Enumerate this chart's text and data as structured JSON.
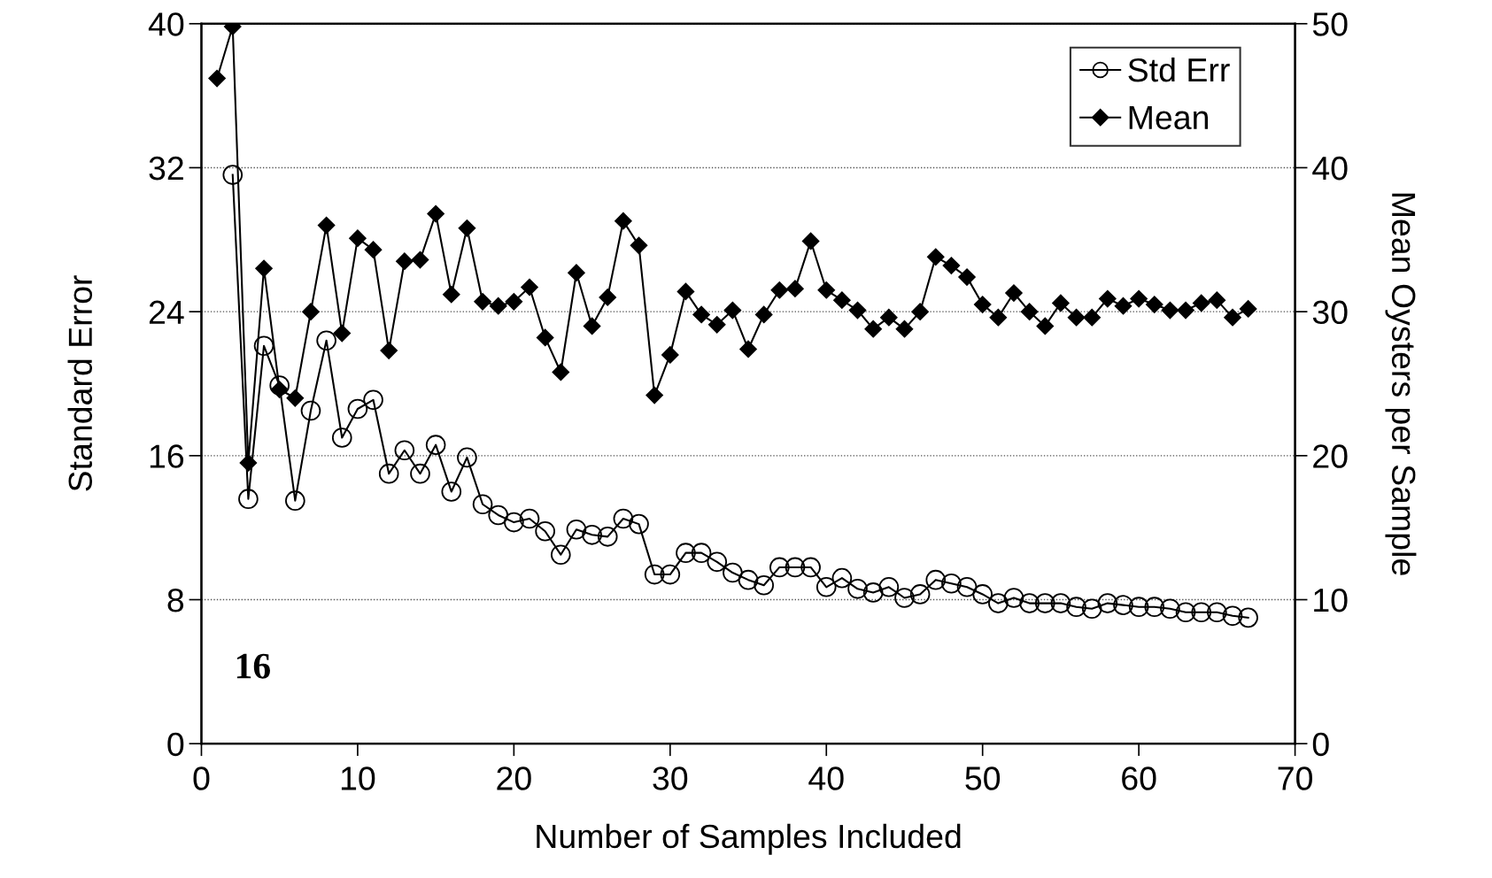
{
  "chart_data": {
    "type": "line",
    "xlabel": "Number of Samples Included",
    "ylabel": "Standard Error",
    "y2label": "Mean Oysters per Sample",
    "xlim": [
      0,
      70
    ],
    "xticks": [
      0,
      10,
      20,
      30,
      40,
      50,
      60,
      70
    ],
    "ylim": [
      0,
      40
    ],
    "yticks": [
      0,
      8,
      16,
      24,
      32,
      40
    ],
    "y2lim": [
      0,
      50
    ],
    "y2ticks": [
      0,
      10,
      20,
      30,
      40,
      50
    ],
    "grid": "y",
    "legend": "top right",
    "line_style": "solid",
    "annotations": [
      "16"
    ],
    "series": [
      {
        "name": "Std Err",
        "color": "#000000",
        "marker": "circle",
        "x": [
          2,
          3,
          4,
          5,
          6,
          7,
          8,
          9,
          10,
          11,
          12,
          13,
          14,
          15,
          16,
          17,
          18,
          19,
          20,
          21,
          22,
          23,
          24,
          25,
          26,
          27,
          28,
          29,
          30,
          31,
          32,
          33,
          34,
          35,
          36,
          37,
          38,
          39,
          40,
          41,
          42,
          43,
          44,
          45,
          46,
          47,
          48,
          49,
          50,
          51,
          52,
          53,
          54,
          55,
          56,
          57,
          58,
          59,
          60,
          61,
          62,
          63,
          64,
          65,
          66,
          67
        ],
        "values": [
          31.6,
          13.6,
          22.1,
          19.9,
          13.5,
          18.5,
          22.4,
          17.0,
          18.6,
          19.1,
          15.0,
          16.3,
          15.0,
          16.6,
          14.0,
          15.9,
          13.3,
          12.7,
          12.3,
          12.5,
          11.8,
          10.5,
          11.9,
          11.6,
          11.5,
          12.5,
          12.2,
          9.4,
          9.4,
          10.6,
          10.6,
          10.1,
          9.5,
          9.1,
          8.8,
          9.8,
          9.8,
          9.8,
          8.7,
          9.2,
          8.6,
          8.4,
          8.7,
          8.1,
          8.3,
          9.1,
          8.9,
          8.7,
          8.3,
          7.8,
          8.1,
          7.8,
          7.8,
          7.8,
          7.6,
          7.5,
          7.8,
          7.7,
          7.6,
          7.6,
          7.5,
          7.3,
          7.3,
          7.3,
          7.1,
          7.0
        ]
      },
      {
        "name": "Mean",
        "color": "#000000",
        "marker": "diamond",
        "axis": "y2",
        "x": [
          1,
          2,
          3,
          4,
          5,
          6,
          7,
          8,
          9,
          10,
          11,
          12,
          13,
          14,
          15,
          16,
          17,
          18,
          19,
          20,
          21,
          22,
          23,
          24,
          25,
          26,
          27,
          28,
          29,
          30,
          31,
          32,
          33,
          34,
          35,
          36,
          37,
          38,
          39,
          40,
          41,
          42,
          43,
          44,
          45,
          46,
          47,
          48,
          49,
          50,
          51,
          52,
          53,
          54,
          55,
          56,
          57,
          58,
          59,
          60,
          61,
          62,
          63,
          64,
          65,
          66,
          67
        ],
        "values": [
          46.2,
          49.8,
          19.5,
          33.0,
          24.6,
          24.0,
          30.0,
          36.0,
          28.5,
          35.1,
          34.3,
          27.3,
          33.5,
          33.6,
          36.8,
          31.2,
          35.8,
          30.7,
          30.4,
          30.7,
          31.7,
          28.2,
          25.8,
          32.7,
          29.0,
          31.0,
          36.3,
          34.6,
          24.2,
          27.0,
          31.4,
          29.8,
          29.1,
          30.1,
          27.4,
          29.8,
          31.5,
          31.6,
          34.9,
          31.5,
          30.8,
          30.1,
          28.8,
          29.6,
          28.8,
          30.0,
          33.8,
          33.2,
          32.4,
          30.5,
          29.6,
          31.3,
          30.0,
          29.0,
          30.6,
          29.6,
          29.6,
          30.9,
          30.4,
          30.9,
          30.5,
          30.1,
          30.1,
          30.6,
          30.8,
          29.6,
          30.2
        ]
      }
    ]
  }
}
